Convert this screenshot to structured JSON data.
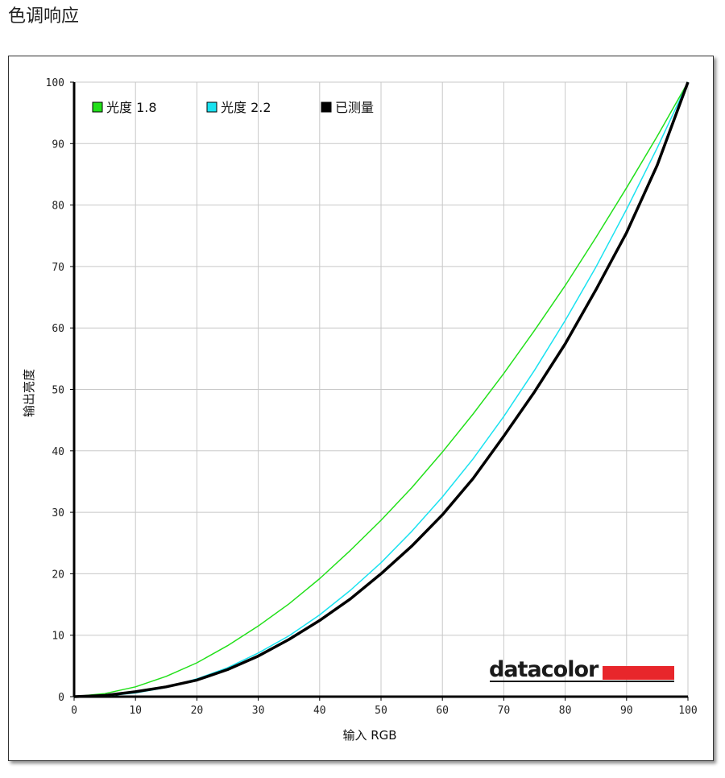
{
  "page_title": "色调响应",
  "brand": {
    "name": "datacolor",
    "color": "#e8262b"
  },
  "chart_data": {
    "type": "line",
    "title": "",
    "xlabel": "输入 RGB",
    "ylabel": "输出亮度",
    "xlim": [
      0,
      100
    ],
    "ylim": [
      0,
      100
    ],
    "xticks": [
      0,
      10,
      20,
      30,
      40,
      50,
      60,
      70,
      80,
      90,
      100
    ],
    "yticks": [
      0,
      10,
      20,
      30,
      40,
      50,
      60,
      70,
      80,
      90,
      100
    ],
    "grid": true,
    "legend_position": "top-left",
    "series": [
      {
        "name": "光度 1.8",
        "color": "#22e01a",
        "x": [
          0,
          5,
          10,
          15,
          20,
          25,
          30,
          35,
          40,
          45,
          50,
          55,
          60,
          65,
          70,
          75,
          80,
          85,
          90,
          95,
          100
        ],
        "values": [
          0,
          0.5,
          1.6,
          3.3,
          5.5,
          8.3,
          11.5,
          15.1,
          19.2,
          23.8,
          28.7,
          34.0,
          39.8,
          46.0,
          52.6,
          59.6,
          66.9,
          74.7,
          82.8,
          91.2,
          100
        ]
      },
      {
        "name": "光度 2.2",
        "color": "#19e2f0",
        "x": [
          0,
          5,
          10,
          15,
          20,
          25,
          30,
          35,
          40,
          45,
          50,
          55,
          60,
          65,
          70,
          75,
          80,
          85,
          90,
          95,
          100
        ],
        "values": [
          0,
          0.1,
          0.6,
          1.5,
          2.9,
          4.7,
          7.1,
          9.9,
          13.3,
          17.3,
          21.8,
          26.9,
          32.5,
          38.7,
          45.6,
          53.1,
          61.2,
          69.9,
          79.3,
          89.3,
          100
        ]
      },
      {
        "name": "已测量",
        "color": "#000000",
        "x": [
          0,
          5,
          10,
          15,
          20,
          25,
          30,
          35,
          40,
          45,
          50,
          55,
          60,
          65,
          70,
          75,
          80,
          85,
          90,
          95,
          100
        ],
        "values": [
          0,
          0.2,
          0.8,
          1.6,
          2.7,
          4.4,
          6.6,
          9.3,
          12.4,
          15.9,
          20.0,
          24.5,
          29.6,
          35.5,
          42.4,
          49.6,
          57.4,
          66.2,
          75.5,
          86.5,
          100
        ]
      }
    ]
  }
}
